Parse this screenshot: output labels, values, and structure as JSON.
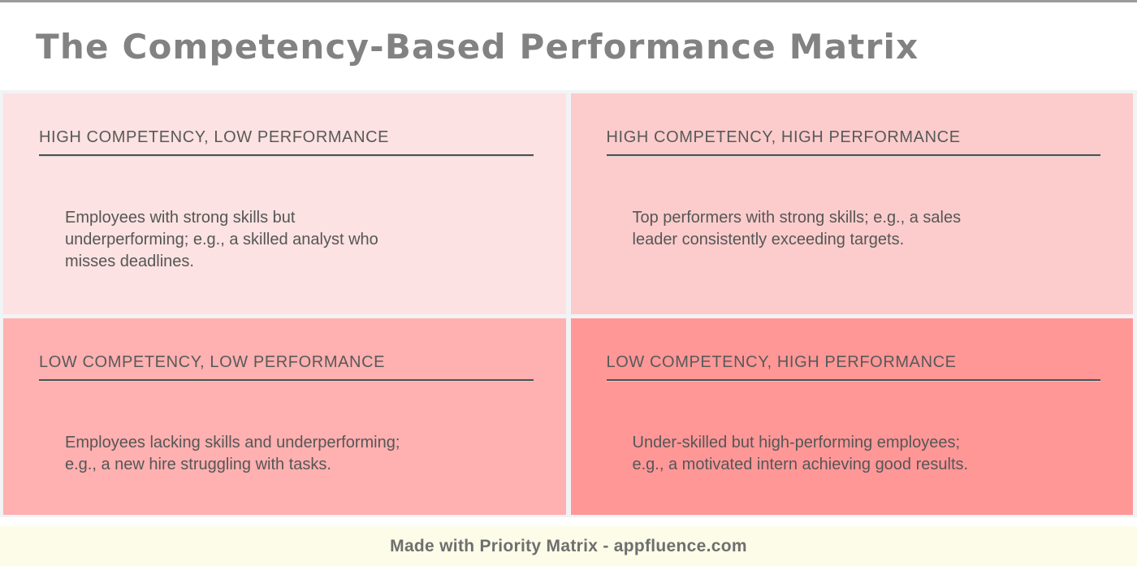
{
  "title": "The Competency-Based Performance Matrix",
  "quadrants": [
    {
      "header": "HIGH COMPETENCY, LOW PERFORMANCE",
      "lines": [
        "Employees with strong skills but",
        "underperforming; e.g., a skilled analyst who",
        "misses deadlines."
      ],
      "bg": "#fce2e2"
    },
    {
      "header": "HIGH COMPETENCY, HIGH PERFORMANCE",
      "lines": [
        "Top performers with strong skills; e.g., a sales",
        "leader consistently exceeding targets."
      ],
      "bg": "#fccccc"
    },
    {
      "header": "LOW COMPETENCY, LOW PERFORMANCE",
      "lines": [
        "Employees lacking skills and underperforming;",
        "e.g., a new hire struggling with tasks."
      ],
      "bg": "#ffb0b0"
    },
    {
      "header": "LOW COMPETENCY, HIGH PERFORMANCE",
      "lines": [
        "Under-skilled but high-performing employees;",
        "e.g., a motivated intern achieving good results."
      ],
      "bg": "#ff9797"
    }
  ],
  "footer": {
    "text": "Made with Priority Matrix - appfluence.com",
    "bg": "#fcfce8"
  },
  "colors": {
    "title_text": "#828282",
    "header_text": "#595959",
    "body_text": "#565656",
    "underline": "#4f4f4f",
    "gutter_background": "#f1f3f5",
    "top_border": "#9b9b9b",
    "footer_background": "#fcfce8",
    "footer_text": "#6f6f6f"
  }
}
